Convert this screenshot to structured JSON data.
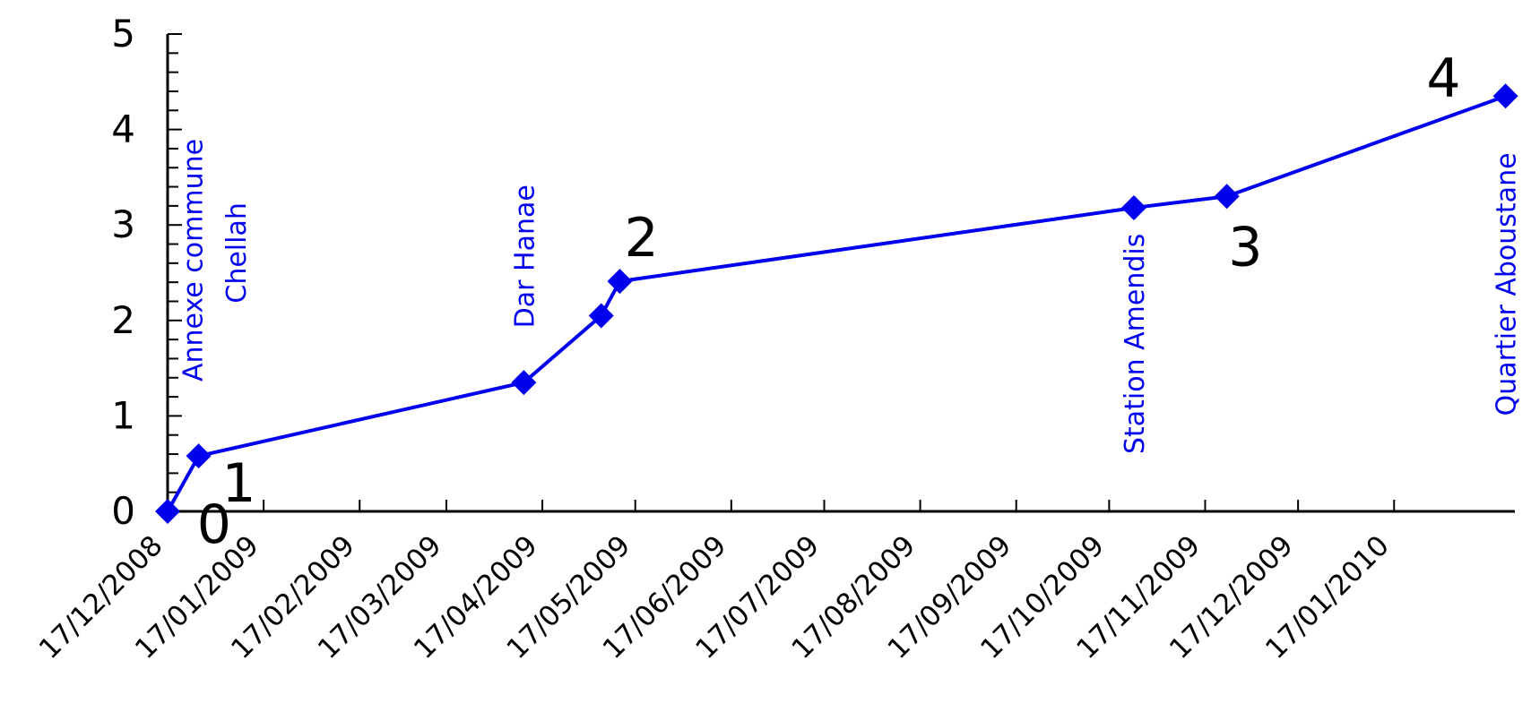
{
  "chart_data": {
    "type": "line",
    "title": "",
    "xlabel": "",
    "ylabel": "",
    "ylim": [
      0,
      5
    ],
    "yticks": [
      "0",
      "1",
      "2",
      "3",
      "4",
      "5"
    ],
    "xlim": [
      "2008-12-17",
      "2010-02-25"
    ],
    "xtick_dates": [
      "2008-12-17",
      "2009-01-17",
      "2009-02-17",
      "2009-03-17",
      "2009-04-17",
      "2009-05-17",
      "2009-06-17",
      "2009-07-17",
      "2009-08-17",
      "2009-09-17",
      "2009-10-17",
      "2009-11-17",
      "2009-12-17",
      "2010-01-17"
    ],
    "xtick_labels": [
      "17/12/2008",
      "17/01/2009",
      "17/02/2009",
      "17/03/2009",
      "17/04/2009",
      "17/05/2009",
      "17/06/2009",
      "17/07/2009",
      "17/08/2009",
      "17/09/2009",
      "17/10/2009",
      "17/11/2009",
      "17/12/2009",
      "17/01/2010"
    ],
    "grid": false,
    "series": [
      {
        "color": "#0000ee",
        "marker": "diamond",
        "points": [
          {
            "x": "2008-12-17",
            "y": 0
          },
          {
            "x": "2008-12-27",
            "y": 0.58
          },
          {
            "x": "2009-04-11",
            "y": 1.35
          },
          {
            "x": "2009-05-06",
            "y": 2.05
          },
          {
            "x": "2009-05-12",
            "y": 2.41
          },
          {
            "x": "2009-10-25",
            "y": 3.18
          },
          {
            "x": "2009-11-24",
            "y": 3.3
          },
          {
            "x": "2010-02-22",
            "y": 4.35
          }
        ]
      }
    ],
    "annotations": [
      {
        "text": "Annexe commune",
        "x": "2008-12-25",
        "y": 1.36,
        "color": "#0000ee",
        "rotation": -90
      },
      {
        "text": "Chellah",
        "x": "2009-01-08",
        "y": 2.18,
        "color": "#0000ee",
        "rotation": -90
      },
      {
        "text": "Dar Hanae",
        "x": "2009-04-11",
        "y": 1.92,
        "color": "#0000ee",
        "rotation": -90
      },
      {
        "text": "Station Amendis",
        "x": "2009-10-25",
        "y": 0.6,
        "color": "#0000ee",
        "rotation": -90
      },
      {
        "text": "Quartier Aboustane",
        "x": "2010-02-22",
        "y": 1.0,
        "color": "#0000ee",
        "rotation": -90
      }
    ],
    "number_labels": [
      {
        "text": "0",
        "x": "2009-01-01",
        "y": -0.12
      },
      {
        "text": "1",
        "x": "2009-01-09",
        "y": 0.31
      },
      {
        "text": "2",
        "x": "2009-05-19",
        "y": 2.88
      },
      {
        "text": "3",
        "x": "2009-11-30",
        "y": 2.78
      },
      {
        "text": "4",
        "x": "2010-02-02",
        "y": 4.55
      }
    ]
  }
}
